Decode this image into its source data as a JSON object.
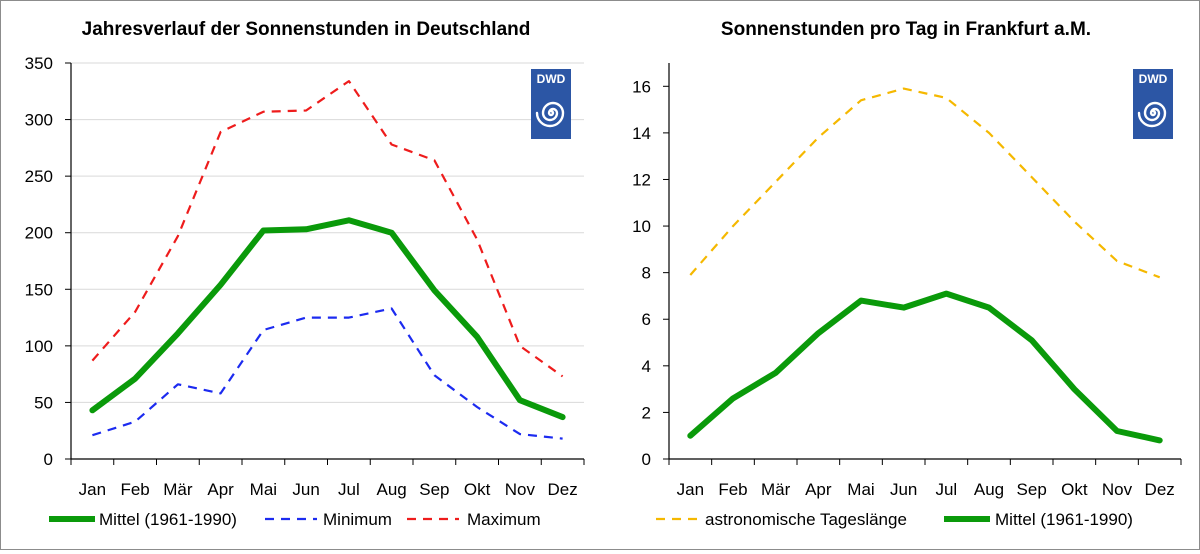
{
  "chart_data": [
    {
      "type": "line",
      "title": "Jahresverlauf der Sonnenstunden in Deutschland",
      "categories": [
        "Jan",
        "Feb",
        "Mär",
        "Apr",
        "Mai",
        "Jun",
        "Jul",
        "Aug",
        "Sep",
        "Okt",
        "Nov",
        "Dez"
      ],
      "ylim": [
        0,
        350
      ],
      "yticks": [
        "0",
        "50",
        "100",
        "150",
        "200",
        "250",
        "300",
        "350"
      ],
      "grid": true,
      "legend_position": "bottom",
      "logo": "DWD",
      "series": [
        {
          "name": "Mittel (1961-1990)",
          "color": "#0a9a0a",
          "style": "solid",
          "values": [
            43,
            71,
            111,
            154,
            202,
            203,
            211,
            200,
            149,
            108,
            52,
            37
          ]
        },
        {
          "name": "Minimum",
          "color": "#1c2bf0",
          "style": "dashed",
          "values": [
            21,
            33,
            66,
            58,
            114,
            125,
            125,
            133,
            74,
            46,
            22,
            18
          ]
        },
        {
          "name": "Maximum",
          "color": "#ee1c1c",
          "style": "dashed",
          "values": [
            87,
            130,
            197,
            289,
            307,
            308,
            334,
            278,
            264,
            194,
            100,
            73
          ]
        }
      ]
    },
    {
      "type": "line",
      "title": "Sonnenstunden pro Tag in Frankfurt a.M.",
      "categories": [
        "Jan",
        "Feb",
        "Mär",
        "Apr",
        "Mai",
        "Jun",
        "Jul",
        "Aug",
        "Sep",
        "Okt",
        "Nov",
        "Dez"
      ],
      "ylim": [
        0,
        17
      ],
      "yticks": [
        "0",
        "2",
        "4",
        "6",
        "8",
        "10",
        "12",
        "14",
        "16"
      ],
      "grid": false,
      "legend_position": "bottom",
      "logo": "DWD",
      "series": [
        {
          "name": "astronomische Tageslänge",
          "color": "#f5b800",
          "style": "dashed",
          "values": [
            7.9,
            10.0,
            11.9,
            13.8,
            15.4,
            15.9,
            15.5,
            14.0,
            12.1,
            10.2,
            8.5,
            7.8
          ]
        },
        {
          "name": "Mittel (1961-1990)",
          "color": "#0a9a0a",
          "style": "solid",
          "values": [
            1.0,
            2.6,
            3.7,
            5.4,
            6.8,
            6.5,
            7.1,
            6.5,
            5.1,
            3.0,
            1.2,
            0.8
          ]
        }
      ]
    }
  ]
}
